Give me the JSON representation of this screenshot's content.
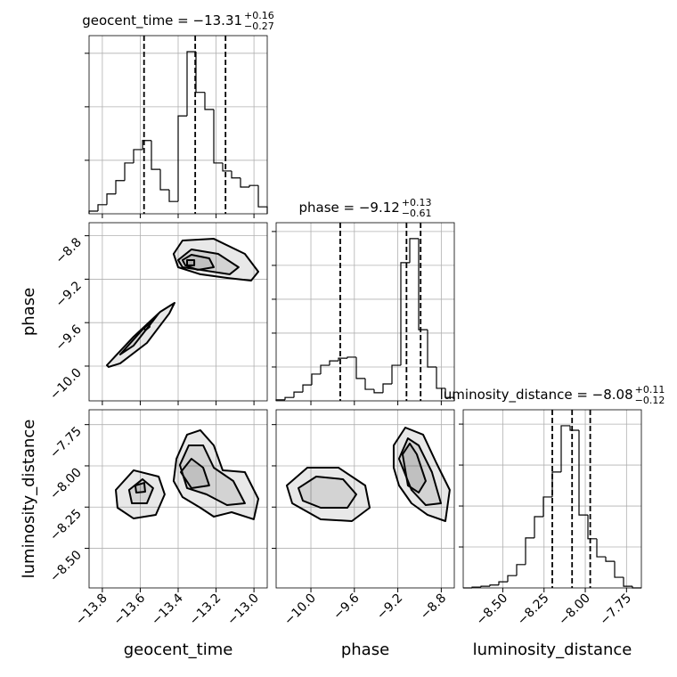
{
  "chart_data": {
    "type": "corner",
    "parameters": [
      {
        "name": "geocent_time",
        "lim": [
          -13.87,
          -12.93
        ],
        "ticks": [
          {
            "value": -13.8,
            "label": "−13.8"
          },
          {
            "value": -13.6,
            "label": "−13.6"
          },
          {
            "value": -13.4,
            "label": "−13.4"
          },
          {
            "value": -13.2,
            "label": "−13.2"
          },
          {
            "value": -13.0,
            "label": "−13.0"
          }
        ],
        "title": {
          "text": "geocent_time = −13.31",
          "upper": "+0.16",
          "lower": "−0.27"
        },
        "quantiles": [
          -13.58,
          -13.31,
          -13.15
        ],
        "bins": [
          -13.87,
          -13.823,
          -13.776,
          -13.729,
          -13.682,
          -13.635,
          -13.588,
          -13.541,
          -13.494,
          -13.447,
          -13.4,
          -13.353,
          -13.306,
          -13.259,
          -13.212,
          -13.165,
          -13.118,
          -13.071,
          -13.024,
          -12.977,
          -12.93
        ],
        "counts": [
          0.05,
          0.17,
          0.37,
          0.62,
          0.95,
          1.2,
          1.37,
          0.83,
          0.45,
          0.23,
          1.83,
          3.03,
          2.27,
          1.95,
          0.95,
          0.8,
          0.67,
          0.5,
          0.53,
          0.13
        ],
        "hist_ylim": [
          0,
          3.33
        ],
        "hist_yticks": [
          1,
          2,
          3
        ]
      },
      {
        "name": "phase",
        "lim": [
          -10.32,
          -8.68
        ],
        "ticks": [
          {
            "value": -10.0,
            "label": "−10.0"
          },
          {
            "value": -9.6,
            "label": "−9.6"
          },
          {
            "value": -9.2,
            "label": "−9.2"
          },
          {
            "value": -8.8,
            "label": "−8.8"
          }
        ],
        "title": {
          "text": "phase = −9.12",
          "upper": "+0.13",
          "lower": "−0.61"
        },
        "quantiles": [
          -9.73,
          -9.12,
          -8.99
        ],
        "bins": [
          -10.32,
          -10.238,
          -10.156,
          -10.074,
          -9.992,
          -9.91,
          -9.828,
          -9.746,
          -9.664,
          -9.582,
          -9.5,
          -9.418,
          -9.336,
          -9.254,
          -9.172,
          -9.09,
          -9.008,
          -8.926,
          -8.844,
          -8.762,
          -8.68
        ],
        "counts": [
          0.03,
          0.1,
          0.26,
          0.47,
          0.79,
          1.05,
          1.18,
          1.26,
          1.29,
          0.66,
          0.34,
          0.24,
          0.5,
          1.05,
          4.08,
          4.79,
          2.1,
          1.0,
          0.37,
          0.1
        ],
        "hist_ylim": [
          0,
          5.26
        ],
        "hist_yticks": [
          1,
          2,
          3,
          4,
          5
        ]
      },
      {
        "name": "luminosity_distance",
        "lim": [
          -8.74,
          -7.66
        ],
        "ticks": [
          {
            "value": -8.5,
            "label": "−8.50"
          },
          {
            "value": -8.25,
            "label": "−8.25"
          },
          {
            "value": -8.0,
            "label": "−8.00"
          },
          {
            "value": -7.75,
            "label": "−7.75"
          }
        ],
        "title": {
          "text": "luminosity_distance = −8.08",
          "upper": "+0.11",
          "lower": "−0.12"
        },
        "quantiles": [
          -8.2,
          -8.08,
          -7.97
        ],
        "bins": [
          -8.74,
          -8.686,
          -8.632,
          -8.578,
          -8.524,
          -8.47,
          -8.416,
          -8.362,
          -8.308,
          -8.254,
          -8.2,
          -8.146,
          -8.092,
          -8.038,
          -7.984,
          -7.93,
          -7.876,
          -7.822,
          -7.768,
          -7.714,
          -7.66
        ],
        "counts": [
          0,
          0.02,
          0.04,
          0.07,
          0.15,
          0.3,
          0.57,
          1.22,
          1.74,
          2.22,
          2.83,
          3.96,
          3.85,
          1.78,
          1.2,
          0.76,
          0.65,
          0.26,
          0.04,
          0
        ],
        "hist_ylim": [
          0,
          4.35
        ],
        "hist_yticks": [
          1,
          2,
          3,
          4
        ]
      }
    ],
    "panels": [
      {
        "contours": [
          [
            [
              -13.776,
              -9.992
            ],
            [
              -13.635,
              -9.729
            ],
            [
              -13.494,
              -9.5
            ],
            [
              -13.419,
              -9.418
            ],
            [
              -13.447,
              -9.516
            ],
            [
              -13.565,
              -9.787
            ],
            [
              -13.706,
              -9.975
            ],
            [
              -13.767,
              -10.008
            ]
          ],
          [
            [
              -13.706,
              -9.893
            ],
            [
              -13.588,
              -9.664
            ],
            [
              -13.503,
              -9.516
            ],
            [
              -13.532,
              -9.582
            ],
            [
              -13.635,
              -9.811
            ]
          ],
          [
            [
              -13.579,
              -9.647
            ],
            [
              -13.551,
              -9.607
            ],
            [
              -13.551,
              -9.639
            ],
            [
              -13.574,
              -9.672
            ]
          ],
          [
            [
              -13.424,
              -8.967
            ],
            [
              -13.377,
              -8.844
            ],
            [
              -13.212,
              -8.828
            ],
            [
              -13.048,
              -8.967
            ],
            [
              -12.977,
              -9.131
            ],
            [
              -13.015,
              -9.213
            ],
            [
              -13.142,
              -9.188
            ],
            [
              -13.283,
              -9.155
            ],
            [
              -13.4,
              -9.09
            ]
          ],
          [
            [
              -13.4,
              -9.024
            ],
            [
              -13.33,
              -8.926
            ],
            [
              -13.189,
              -8.967
            ],
            [
              -13.081,
              -9.09
            ],
            [
              -13.128,
              -9.155
            ],
            [
              -13.283,
              -9.114
            ],
            [
              -13.377,
              -9.09
            ]
          ],
          [
            [
              -13.377,
              -9.024
            ],
            [
              -13.33,
              -8.975
            ],
            [
              -13.236,
              -9.008
            ],
            [
              -13.212,
              -9.09
            ],
            [
              -13.297,
              -9.114
            ],
            [
              -13.362,
              -9.073
            ]
          ],
          [
            [
              -13.353,
              -9.024
            ],
            [
              -13.315,
              -9.024
            ],
            [
              -13.315,
              -9.073
            ],
            [
              -13.353,
              -9.073
            ]
          ]
        ]
      },
      {
        "contours": [
          [
            [
              -13.729,
              -8.146
            ],
            [
              -13.635,
              -8.027
            ],
            [
              -13.503,
              -8.065
            ],
            [
              -13.471,
              -8.173
            ],
            [
              -13.518,
              -8.297
            ],
            [
              -13.635,
              -8.319
            ],
            [
              -13.72,
              -8.254
            ]
          ],
          [
            [
              -13.659,
              -8.146
            ],
            [
              -13.588,
              -8.081
            ],
            [
              -13.532,
              -8.135
            ],
            [
              -13.565,
              -8.227
            ],
            [
              -13.644,
              -8.227
            ]
          ],
          [
            [
              -13.626,
              -8.119
            ],
            [
              -13.579,
              -8.103
            ],
            [
              -13.574,
              -8.157
            ],
            [
              -13.621,
              -8.162
            ]
          ],
          [
            [
              -13.409,
              -7.957
            ],
            [
              -13.353,
              -7.811
            ],
            [
              -13.283,
              -7.784
            ],
            [
              -13.212,
              -7.876
            ],
            [
              -13.165,
              -8.027
            ],
            [
              -13.048,
              -8.038
            ],
            [
              -12.977,
              -8.2
            ],
            [
              -13.001,
              -8.324
            ],
            [
              -13.118,
              -8.281
            ],
            [
              -13.212,
              -8.308
            ],
            [
              -13.283,
              -8.254
            ],
            [
              -13.377,
              -8.189
            ],
            [
              -13.424,
              -8.092
            ]
          ],
          [
            [
              -13.391,
              -7.995
            ],
            [
              -13.344,
              -7.876
            ],
            [
              -13.268,
              -7.876
            ],
            [
              -13.212,
              -8.011
            ],
            [
              -13.109,
              -8.092
            ],
            [
              -13.048,
              -8.227
            ],
            [
              -13.142,
              -8.238
            ],
            [
              -13.25,
              -8.173
            ],
            [
              -13.353,
              -8.135
            ]
          ],
          [
            [
              -13.386,
              -8.038
            ],
            [
              -13.33,
              -7.957
            ],
            [
              -13.268,
              -8.011
            ],
            [
              -13.236,
              -8.119
            ],
            [
              -13.33,
              -8.135
            ]
          ]
        ]
      },
      {
        "contours": [
          [
            [
              -10.222,
              -8.119
            ],
            [
              -10.033,
              -8.011
            ],
            [
              -9.746,
              -8.011
            ],
            [
              -9.5,
              -8.119
            ],
            [
              -9.459,
              -8.254
            ],
            [
              -9.623,
              -8.335
            ],
            [
              -9.91,
              -8.324
            ],
            [
              -10.172,
              -8.227
            ]
          ],
          [
            [
              -10.115,
              -8.135
            ],
            [
              -9.951,
              -8.065
            ],
            [
              -9.705,
              -8.081
            ],
            [
              -9.582,
              -8.173
            ],
            [
              -9.664,
              -8.254
            ],
            [
              -9.91,
              -8.254
            ],
            [
              -10.074,
              -8.211
            ]
          ],
          [
            [
              -9.238,
              -7.876
            ],
            [
              -9.131,
              -7.768
            ],
            [
              -8.967,
              -7.811
            ],
            [
              -8.844,
              -7.984
            ],
            [
              -8.722,
              -8.146
            ],
            [
              -8.762,
              -8.335
            ],
            [
              -8.927,
              -8.297
            ],
            [
              -9.074,
              -8.227
            ],
            [
              -9.189,
              -8.119
            ],
            [
              -9.238,
              -8.011
            ]
          ],
          [
            [
              -9.189,
              -7.957
            ],
            [
              -9.107,
              -7.833
            ],
            [
              -9.008,
              -7.876
            ],
            [
              -8.886,
              -8.038
            ],
            [
              -8.803,
              -8.227
            ],
            [
              -8.943,
              -8.238
            ],
            [
              -9.074,
              -8.146
            ]
          ],
          [
            [
              -9.156,
              -7.93
            ],
            [
              -9.09,
              -7.865
            ],
            [
              -9.025,
              -7.93
            ],
            [
              -8.943,
              -8.092
            ],
            [
              -9.008,
              -8.162
            ],
            [
              -9.107,
              -8.119
            ]
          ]
        ]
      }
    ]
  }
}
